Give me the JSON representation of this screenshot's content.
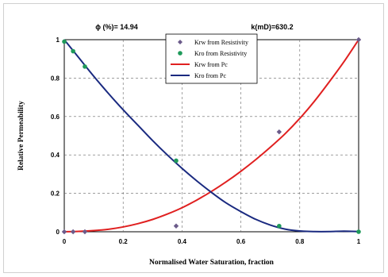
{
  "chart_data": {
    "type": "scatter",
    "annotations": {
      "porosity": "ϕ (%)= 14.94",
      "permeability": "k(mD)=630.2"
    },
    "xlabel": "Normalised Water Saturation, fraction",
    "ylabel": "Relative Permeability",
    "xlim": [
      0,
      1
    ],
    "ylim": [
      0,
      1
    ],
    "x_ticks": [
      "0",
      "0.2",
      "0.4",
      "0.6",
      "0.8",
      "1"
    ],
    "y_ticks": [
      "0",
      "0.2",
      "0.4",
      "0.6",
      "0.8",
      "1"
    ],
    "grid": "dashed",
    "legend_position": "top-center",
    "series": [
      {
        "name": "Krw from Resistivity",
        "kind": "points",
        "marker": "diamond",
        "color": "#6b5b8a",
        "x": [
          0,
          0.03,
          0.07,
          0.38,
          0.73,
          1
        ],
        "y": [
          0,
          0,
          0,
          0.03,
          0.52,
          1
        ]
      },
      {
        "name": "Kro from Resistivity",
        "kind": "points",
        "marker": "circle",
        "color": "#1f9a5a",
        "x": [
          0,
          0.03,
          0.07,
          0.38,
          0.73,
          1
        ],
        "y": [
          0.99,
          0.94,
          0.86,
          0.37,
          0.03,
          0
        ]
      },
      {
        "name": "Krw from Pc",
        "kind": "line",
        "color": "#e02020",
        "x": [
          0,
          0.05,
          0.1,
          0.15,
          0.2,
          0.25,
          0.3,
          0.35,
          0.4,
          0.45,
          0.5,
          0.55,
          0.6,
          0.65,
          0.7,
          0.75,
          0.8,
          0.85,
          0.9,
          0.95,
          1
        ],
        "y": [
          0,
          0.002,
          0.006,
          0.013,
          0.025,
          0.042,
          0.064,
          0.092,
          0.125,
          0.165,
          0.21,
          0.26,
          0.315,
          0.375,
          0.44,
          0.51,
          0.59,
          0.68,
          0.78,
          0.885,
          1
        ]
      },
      {
        "name": "Kro from Pc",
        "kind": "line",
        "color": "#1a2a80",
        "x": [
          0,
          0.05,
          0.1,
          0.15,
          0.2,
          0.25,
          0.3,
          0.35,
          0.4,
          0.45,
          0.5,
          0.55,
          0.6,
          0.65,
          0.7,
          0.75,
          0.8,
          0.85,
          0.9,
          0.95,
          1
        ],
        "y": [
          1,
          0.905,
          0.81,
          0.72,
          0.635,
          0.555,
          0.475,
          0.4,
          0.33,
          0.265,
          0.205,
          0.15,
          0.105,
          0.065,
          0.035,
          0.014,
          0.004,
          0.001,
          0.001,
          0.003,
          0.001
        ]
      }
    ]
  }
}
